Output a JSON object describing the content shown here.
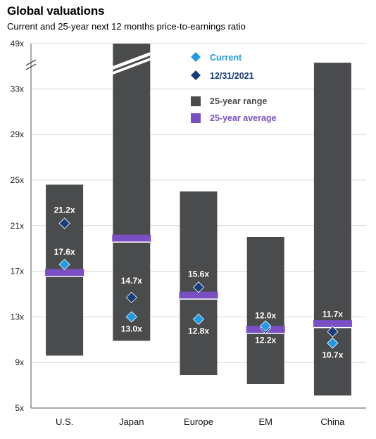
{
  "title": "Global valuations",
  "subtitle": "Current and 25-year next 12 months price-to-earnings ratio",
  "colors": {
    "range": "#4a4b4d",
    "average": "#7b4fc4",
    "current": "#1e9be8",
    "prior": "#163e7c",
    "grid": "#d9d9d9",
    "label_light": "#ffffff"
  },
  "chart_data": {
    "type": "bar",
    "categories": [
      "U.S.",
      "Japan",
      "Europe",
      "EM",
      "China"
    ],
    "y_ticks": [
      "5x",
      "9x",
      "13x",
      "17x",
      "21x",
      "25x",
      "29x",
      "33x",
      "49x"
    ],
    "ylim": [
      5,
      49
    ],
    "axis_break": true,
    "grid": true,
    "legend_position": "top-right",
    "legend": {
      "current": "Current",
      "prior": "12/31/2021",
      "range": "25-year range",
      "average": "25-year average"
    },
    "series": [
      {
        "name": "25-year range",
        "low": [
          9.6,
          10.9,
          7.9,
          7.1,
          6.1
        ],
        "high": [
          24.6,
          49,
          24.0,
          20.0,
          35.3
        ]
      },
      {
        "name": "25-year average",
        "values": [
          16.9,
          19.9,
          14.9,
          11.9,
          12.4
        ]
      },
      {
        "name": "12/31/2021",
        "values": [
          21.2,
          14.7,
          15.6,
          12.0,
          11.7
        ]
      },
      {
        "name": "Current",
        "values": [
          17.6,
          13.0,
          12.8,
          12.2,
          10.7
        ]
      }
    ],
    "labels": {
      "prior": [
        "21.2x",
        "14.7x",
        "15.6x",
        "12.0x",
        "11.7x"
      ],
      "current": [
        "17.6x",
        "13.0x",
        "12.8x",
        "12.2x",
        "10.7x"
      ]
    }
  }
}
